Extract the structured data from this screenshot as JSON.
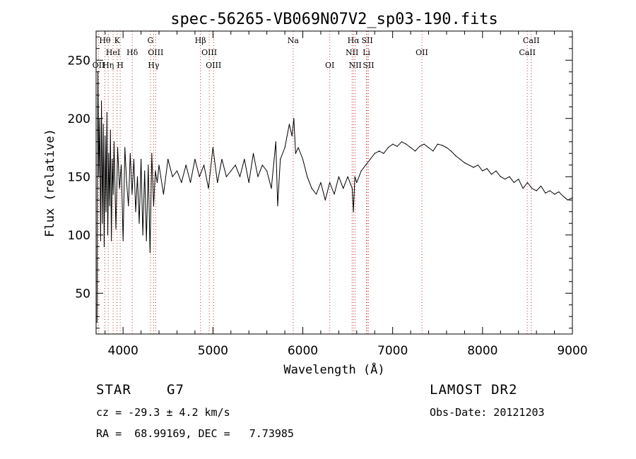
{
  "chart_data": {
    "type": "line",
    "title": "spec-56265-VB069N07V2_sp03-190.fits",
    "xlabel": "Wavelength (Å)",
    "ylabel": "Flux (relative)",
    "xlim": [
      3700,
      9000
    ],
    "ylim": [
      15,
      275
    ],
    "xticks": [
      4000,
      5000,
      6000,
      7000,
      8000,
      9000
    ],
    "yticks": [
      50,
      100,
      150,
      200,
      250
    ],
    "grid": false,
    "series": [
      {
        "line_color": "#000000",
        "x": [
          3710,
          3720,
          3730,
          3740,
          3750,
          3760,
          3770,
          3780,
          3790,
          3800,
          3810,
          3820,
          3830,
          3840,
          3850,
          3860,
          3870,
          3880,
          3890,
          3900,
          3920,
          3940,
          3960,
          3980,
          4000,
          4020,
          4040,
          4060,
          4080,
          4100,
          4120,
          4140,
          4160,
          4180,
          4200,
          4220,
          4240,
          4260,
          4280,
          4300,
          4320,
          4340,
          4360,
          4380,
          4400,
          4450,
          4500,
          4550,
          4600,
          4650,
          4700,
          4750,
          4800,
          4850,
          4900,
          4950,
          5000,
          5050,
          5100,
          5150,
          5200,
          5250,
          5300,
          5350,
          5400,
          5450,
          5500,
          5550,
          5600,
          5650,
          5700,
          5720,
          5750,
          5800,
          5850,
          5880,
          5900,
          5920,
          5950,
          6000,
          6050,
          6100,
          6150,
          6200,
          6250,
          6300,
          6350,
          6400,
          6450,
          6500,
          6550,
          6563,
          6580,
          6600,
          6650,
          6700,
          6750,
          6800,
          6850,
          6900,
          6950,
          7000,
          7050,
          7100,
          7150,
          7200,
          7250,
          7300,
          7350,
          7400,
          7450,
          7500,
          7550,
          7600,
          7650,
          7700,
          7750,
          7800,
          7850,
          7900,
          7950,
          8000,
          8050,
          8100,
          8150,
          8200,
          8250,
          8300,
          8350,
          8400,
          8450,
          8500,
          8550,
          8600,
          8650,
          8700,
          8750,
          8800,
          8850,
          8900,
          8950,
          9000
        ],
        "y": [
          25,
          240,
          150,
          200,
          95,
          215,
          110,
          195,
          90,
          185,
          120,
          205,
          100,
          170,
          125,
          190,
          95,
          165,
          135,
          180,
          105,
          175,
          140,
          160,
          95,
          175,
          145,
          125,
          170,
          135,
          165,
          120,
          150,
          110,
          165,
          100,
          155,
          95,
          160,
          85,
          170,
          125,
          155,
          145,
          160,
          135,
          165,
          150,
          155,
          145,
          160,
          145,
          165,
          150,
          160,
          140,
          175,
          145,
          165,
          150,
          155,
          160,
          150,
          165,
          145,
          170,
          150,
          160,
          155,
          140,
          180,
          125,
          165,
          175,
          195,
          185,
          200,
          170,
          175,
          165,
          150,
          140,
          135,
          145,
          130,
          145,
          135,
          150,
          140,
          150,
          140,
          120,
          150,
          145,
          155,
          160,
          165,
          170,
          172,
          170,
          175,
          178,
          176,
          180,
          178,
          175,
          172,
          176,
          178,
          175,
          172,
          178,
          177,
          175,
          172,
          168,
          165,
          162,
          160,
          158,
          160,
          155,
          157,
          152,
          155,
          150,
          148,
          150,
          145,
          148,
          140,
          145,
          140,
          138,
          142,
          136,
          138,
          135,
          137,
          133,
          130,
          132
        ]
      }
    ],
    "line_markers": [
      {
        "label": "Hθ",
        "x": 3798,
        "row": 0
      },
      {
        "label": "K",
        "x": 3934,
        "row": 0
      },
      {
        "label": "G",
        "x": 4305,
        "row": 0
      },
      {
        "label": "Hβ",
        "x": 4861,
        "row": 0
      },
      {
        "label": "Na",
        "x": 5893,
        "row": 0
      },
      {
        "label": "Hα",
        "x": 6563,
        "row": 0
      },
      {
        "label": "SII",
        "x": 6717,
        "row": 0
      },
      {
        "label": "CaII",
        "x": 8542,
        "row": 0
      },
      {
        "label": "HeI",
        "x": 3889,
        "row": 1
      },
      {
        "label": "Hδ",
        "x": 4102,
        "row": 1
      },
      {
        "label": "OIII",
        "x": 4363,
        "row": 1
      },
      {
        "label": "OIII",
        "x": 4959,
        "row": 1
      },
      {
        "label": "NII",
        "x": 6548,
        "row": 1
      },
      {
        "label": "Li",
        "x": 6708,
        "row": 1
      },
      {
        "label": "OII",
        "x": 7325,
        "row": 1
      },
      {
        "label": "CaII",
        "x": 8498,
        "row": 1
      },
      {
        "label": "OII",
        "x": 3727,
        "row": 2
      },
      {
        "label": "Hη",
        "x": 3835,
        "row": 2
      },
      {
        "label": "H",
        "x": 3968,
        "row": 2
      },
      {
        "label": "Hγ",
        "x": 4340,
        "row": 2
      },
      {
        "label": "OIII",
        "x": 5007,
        "row": 2
      },
      {
        "label": "OI",
        "x": 6300,
        "row": 2
      },
      {
        "label": "NII",
        "x": 6583,
        "row": 2
      },
      {
        "label": "SII",
        "x": 6731,
        "row": 2
      }
    ]
  },
  "info": {
    "object_type": "STAR",
    "subclass": "G7",
    "survey": "LAMOST DR2",
    "cz": "cz = -29.3 ± 4.2 km/s",
    "obs_date": "Obs-Date: 20121203",
    "coords": "RA =  68.99169, DEC =   7.73985"
  }
}
